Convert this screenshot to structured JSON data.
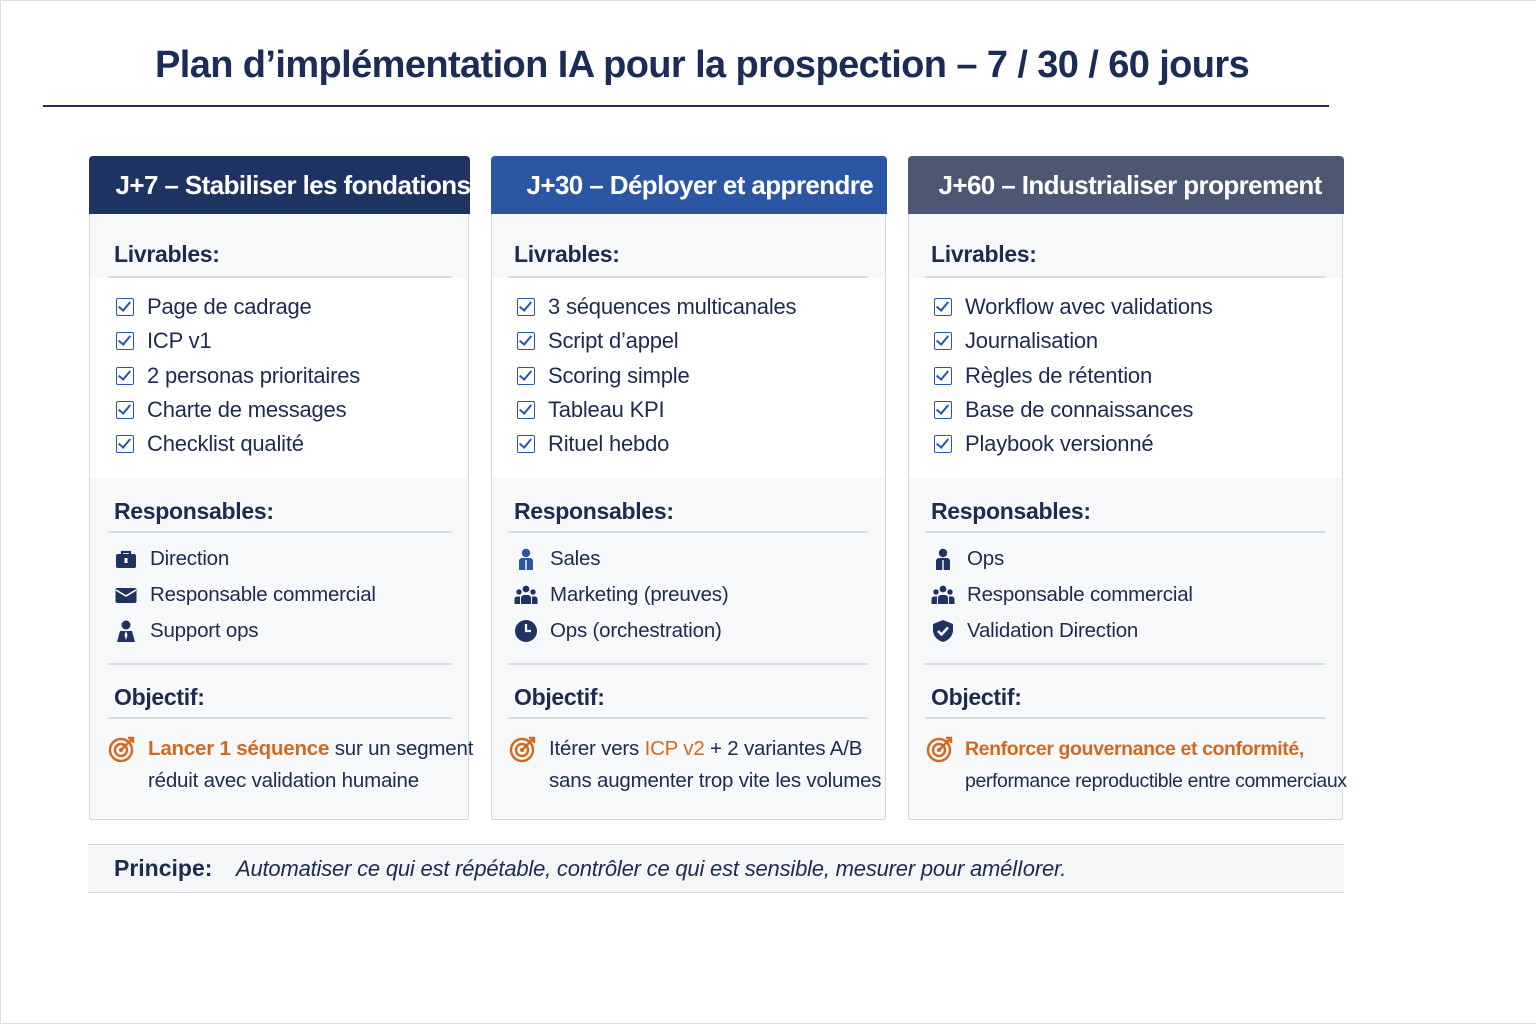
{
  "title": {
    "prefix": "Plan d’implémentation IA pour la prospection – ",
    "bold": "7 / 30 / 60",
    "suffix": " jours"
  },
  "colors": {
    "navy": "#1f3362",
    "blue": "#2a56a3",
    "slate": "#4c5873",
    "accent_orange": "#d2691e"
  },
  "columns": [
    {
      "header": "J+7 – Stabiliser les fondations",
      "livrables_title": "Livrables:",
      "livrables": [
        "Page de cadrage",
        "ICP v1",
        "2 personas prioritaires",
        "Charte de messages",
        "Checklist qualité"
      ],
      "responsables_title": "Responsables:",
      "responsables": [
        {
          "icon": "briefcase-icon",
          "label": "Direction"
        },
        {
          "icon": "envelope-icon",
          "label": "Responsable commercial"
        },
        {
          "icon": "person-icon",
          "label": "Support ops"
        }
      ],
      "objectif_title": "Objectif:",
      "objectif": {
        "line1_accent": "Lancer 1 séquence",
        "line1_rest": " sur un segment",
        "line2": "réduit avec validation humaine"
      }
    },
    {
      "header": "J+30 – Déployer et apprendre",
      "livrables_title": "Livrables:",
      "livrables": [
        "3 séquences multicanales",
        "Script d’appel",
        "Scoring simple",
        "Tableau KPI",
        "Rituel hebdo"
      ],
      "responsables_title": "Responsables:",
      "responsables": [
        {
          "icon": "person-icon",
          "label": "Sales"
        },
        {
          "icon": "team-icon",
          "label": "Marketing (preuves)"
        },
        {
          "icon": "clock-icon",
          "label": "Ops (orchestration)"
        }
      ],
      "objectif_title": "Objectif:",
      "objectif": {
        "line1_pre": "Itérer vers ",
        "line1_accent": "ICP v2",
        "line1_rest": " + 2 variantes A/B",
        "line2": "sans augmenter trop vite les volumes"
      }
    },
    {
      "header": "J+60 – Industrialiser proprement",
      "livrables_title": "Livrables:",
      "livrables": [
        "Workflow avec validations",
        "Journalisation",
        "Règles de rétention",
        "Base de connaissances",
        "Playbook versionné"
      ],
      "responsables_title": "Responsables:",
      "responsables": [
        {
          "icon": "person-icon",
          "label": "Ops"
        },
        {
          "icon": "team-icon",
          "label": "Responsable commercial"
        },
        {
          "icon": "shield-check-icon",
          "label": "Validation Direction"
        }
      ],
      "objectif_title": "Objectif:",
      "objectif": {
        "line1_accent": "Renforcer gouvernance et conformité,",
        "line2": "performance reproductible entre commerciaux"
      }
    }
  ],
  "principe": {
    "label": "Principe:",
    "text": "Automatiser ce qui est répétable, contrôler ce qui est sensible, mesurer pour amélIorer."
  }
}
